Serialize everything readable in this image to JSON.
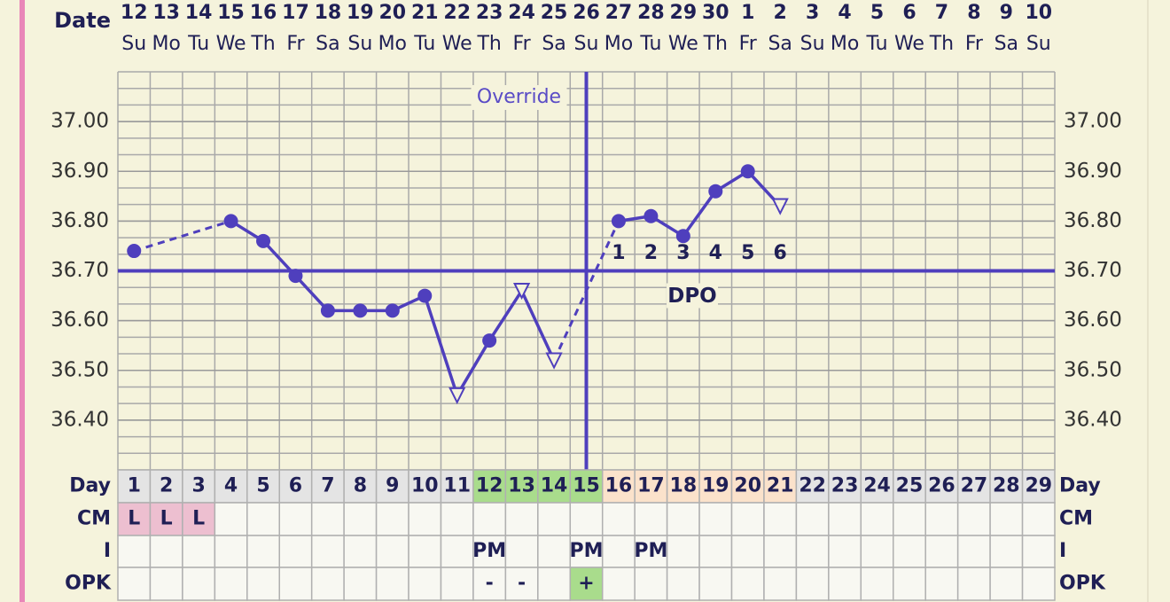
{
  "chart_data": {
    "type": "line",
    "date_label": "Date",
    "categories": [
      "12",
      "13",
      "14",
      "15",
      "16",
      "17",
      "18",
      "19",
      "20",
      "21",
      "22",
      "23",
      "24",
      "25",
      "26",
      "27",
      "28",
      "29",
      "30",
      "1",
      "2",
      "3",
      "4",
      "5",
      "6",
      "7",
      "8",
      "9",
      "10"
    ],
    "weekdays": [
      "Su",
      "Mo",
      "Tu",
      "We",
      "Th",
      "Fr",
      "Sa",
      "Su",
      "Mo",
      "Tu",
      "We",
      "Th",
      "Fr",
      "Sa",
      "Su",
      "Mo",
      "Tu",
      "We",
      "Th",
      "Fr",
      "Sa",
      "Su",
      "Mo",
      "Tu",
      "We",
      "Th",
      "Fr",
      "Sa",
      "Su"
    ],
    "values": [
      36.74,
      null,
      null,
      36.8,
      36.76,
      36.69,
      36.62,
      36.62,
      36.62,
      36.65,
      36.45,
      36.56,
      36.66,
      36.52,
      null,
      36.8,
      36.81,
      36.77,
      36.86,
      36.9,
      36.83,
      null,
      null,
      null,
      null,
      null,
      null,
      null,
      null
    ],
    "markers": [
      "dot",
      null,
      null,
      "dot",
      "dot",
      "dot",
      "dot",
      "dot",
      "dot",
      "dot",
      "triangle",
      "dot",
      "triangle",
      "triangle",
      null,
      "dot",
      "dot",
      "dot",
      "dot",
      "dot",
      "triangle",
      null,
      null,
      null,
      null,
      null,
      null,
      null,
      null
    ],
    "color": "#4f3fbd",
    "ylim": [
      36.3,
      37.1
    ],
    "yticks": [
      {
        "value": 36.4,
        "label": "36.40"
      },
      {
        "value": 36.5,
        "label": "36.50"
      },
      {
        "value": 36.6,
        "label": "36.60"
      },
      {
        "value": 36.7,
        "label": "36.70"
      },
      {
        "value": 36.8,
        "label": "36.80"
      },
      {
        "value": 36.9,
        "label": "36.90"
      },
      {
        "value": 37.0,
        "label": "37.00"
      }
    ],
    "coverline": 36.7,
    "coverline_label": "DPO",
    "override": {
      "label": "Override",
      "category": "26"
    },
    "dpo": [
      null,
      null,
      null,
      null,
      null,
      null,
      null,
      null,
      null,
      null,
      null,
      null,
      null,
      null,
      null,
      1,
      2,
      3,
      4,
      5,
      6,
      null,
      null,
      null,
      null,
      null,
      null,
      null,
      null
    ],
    "grid": true
  },
  "table": {
    "row_labels": [
      "Day",
      "CM",
      "I",
      "OPK"
    ],
    "days": [
      1,
      2,
      3,
      4,
      5,
      6,
      7,
      8,
      9,
      10,
      11,
      12,
      13,
      14,
      15,
      16,
      17,
      18,
      19,
      20,
      21,
      22,
      23,
      24,
      25,
      26,
      27,
      28,
      29
    ],
    "day_colors": [
      "#e4e4e4",
      "#e4e4e4",
      "#e4e4e4",
      "#e4e4e4",
      "#e4e4e4",
      "#e4e4e4",
      "#e4e4e4",
      "#e4e4e4",
      "#e4e4e4",
      "#e4e4e4",
      "#e4e4e4",
      "#a9dc8c",
      "#a9dc8c",
      "#a9dc8c",
      "#a9dc8c",
      "#fbe2cb",
      "#fbe2cb",
      "#fbe2cb",
      "#fbe2cb",
      "#fbe2cb",
      "#fbe2cb",
      "#e4e4e4",
      "#e4e4e4",
      "#e4e4e4",
      "#e4e4e4",
      "#e4e4e4",
      "#e4e4e4",
      "#e4e4e4",
      "#e4e4e4"
    ],
    "cm": [
      "L",
      "L",
      "L",
      null,
      null,
      null,
      null,
      null,
      null,
      null,
      null,
      null,
      null,
      null,
      null,
      null,
      null,
      null,
      null,
      null,
      null,
      null,
      null,
      null,
      null,
      null,
      null,
      null,
      null
    ],
    "cm_color": "#edbfd0",
    "i": [
      null,
      null,
      null,
      null,
      null,
      null,
      null,
      null,
      null,
      null,
      null,
      "PM",
      null,
      null,
      "PM",
      null,
      "PM",
      null,
      null,
      null,
      null,
      null,
      null,
      null,
      null,
      null,
      null,
      null,
      null
    ],
    "opk": [
      null,
      null,
      null,
      null,
      null,
      null,
      null,
      null,
      null,
      null,
      null,
      "-",
      "-",
      null,
      "+",
      null,
      null,
      null,
      null,
      null,
      null,
      null,
      null,
      null,
      null,
      null,
      null,
      null,
      null
    ],
    "opk_colors": [
      null,
      null,
      null,
      null,
      null,
      null,
      null,
      null,
      null,
      null,
      null,
      null,
      null,
      null,
      "#a9dc8c",
      null,
      null,
      null,
      null,
      null,
      null,
      null,
      null,
      null,
      null,
      null,
      null,
      null,
      null
    ]
  }
}
